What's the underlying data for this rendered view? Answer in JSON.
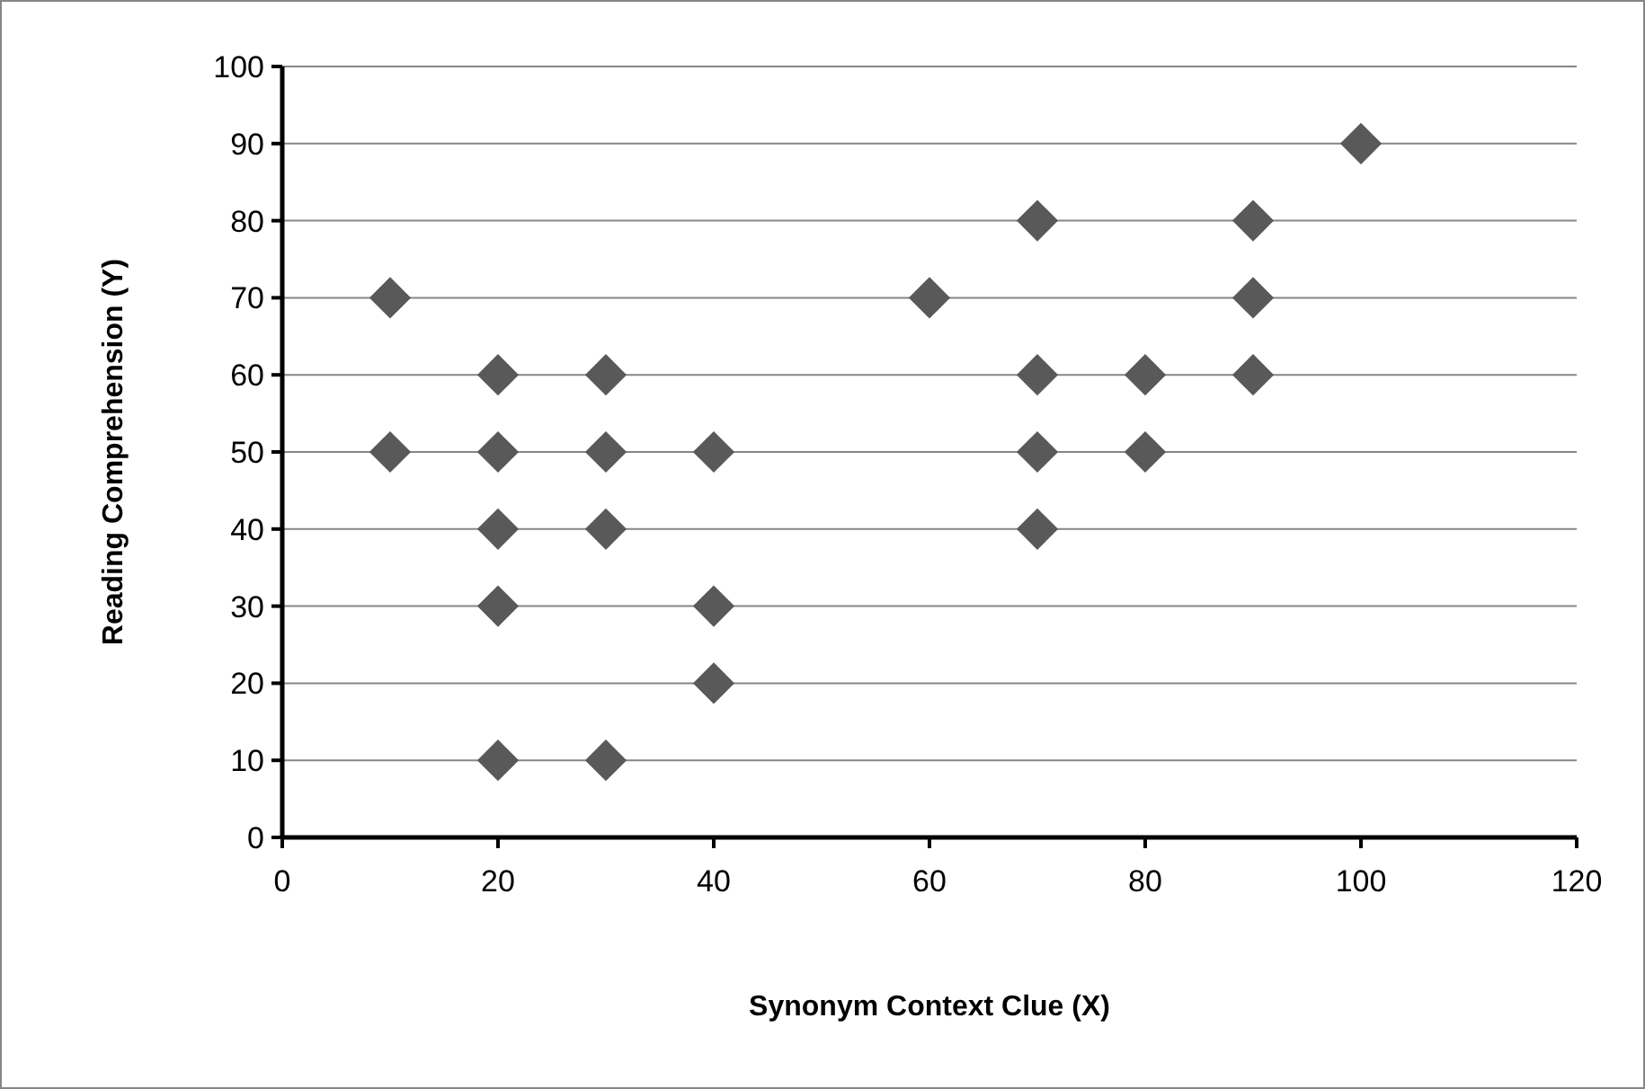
{
  "chart_data": {
    "type": "scatter",
    "xlabel": "Synonym Context Clue (X)",
    "ylabel": "Reading Comprehension (Y)",
    "xlim": [
      0,
      120
    ],
    "xticks": [
      0,
      20,
      40,
      60,
      80,
      100,
      120
    ],
    "ylim": [
      0,
      100
    ],
    "yticks": [
      0,
      10,
      20,
      30,
      40,
      50,
      60,
      70,
      80,
      90,
      100
    ],
    "grid": "y",
    "marker": "diamond",
    "series": [
      {
        "color": "#595959",
        "x": [
          10,
          10,
          20,
          20,
          20,
          20,
          20,
          30,
          30,
          30,
          30,
          40,
          40,
          40,
          60,
          70,
          70,
          70,
          70,
          80,
          80,
          90,
          90,
          90,
          100
        ],
        "values": [
          70,
          50,
          60,
          50,
          40,
          30,
          10,
          60,
          50,
          40,
          10,
          50,
          30,
          20,
          70,
          80,
          60,
          50,
          40,
          60,
          50,
          80,
          70,
          60,
          90
        ]
      }
    ]
  }
}
